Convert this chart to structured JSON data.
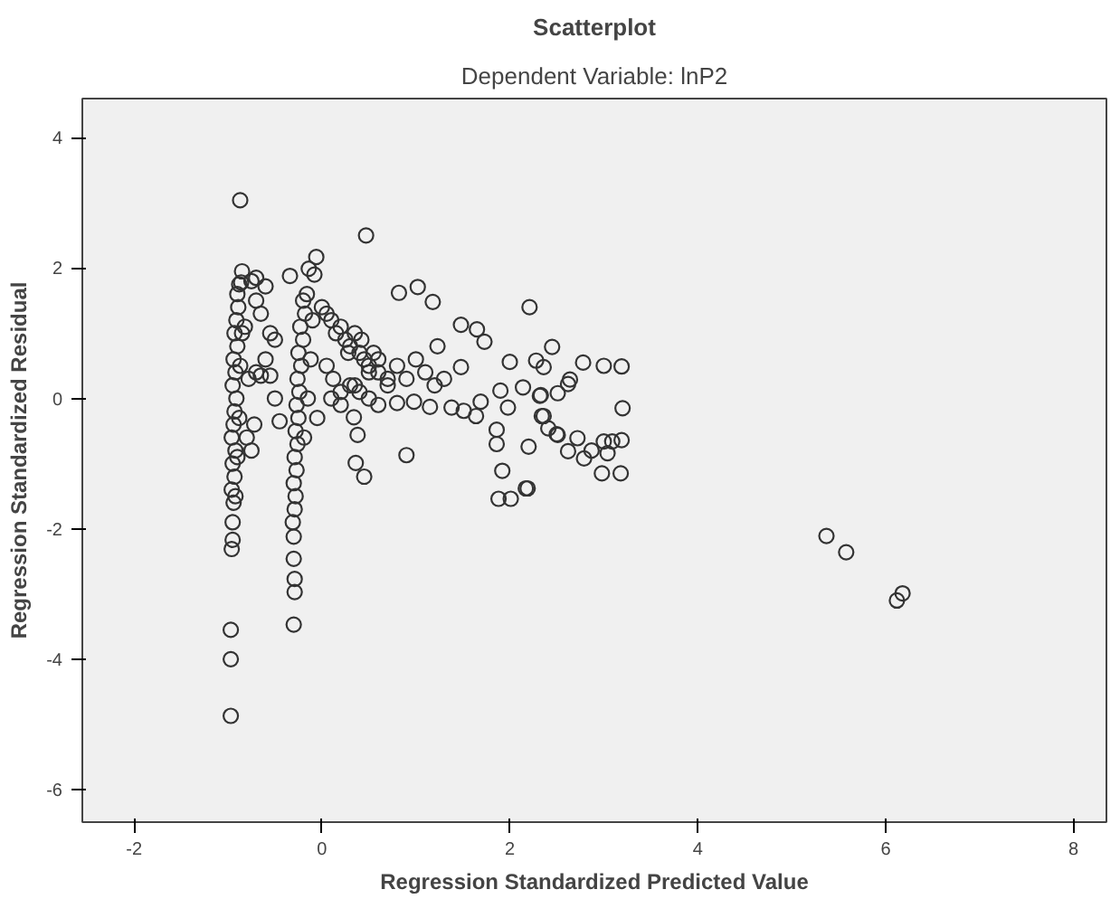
{
  "chart_data": {
    "type": "scatter",
    "title": "Scatterplot",
    "subtitle": "Dependent Variable: lnP2",
    "xlabel": "Regression Standardized Predicted Value",
    "ylabel": "Regression Standardized Residual",
    "marker": "circle",
    "grid": false,
    "xlim": [
      -2.55,
      8.35
    ],
    "ylim": [
      -6.5,
      4.6
    ],
    "xticks": [
      -2,
      0,
      2,
      4,
      6,
      8
    ],
    "yticks": [
      -6,
      -4,
      -2,
      0,
      2,
      4
    ],
    "series": [
      {
        "color": "#333333",
        "x": [
          -0.87,
          -0.97,
          -0.97,
          -0.97,
          -0.96,
          -0.95,
          -0.95,
          -0.94,
          -0.96,
          -0.93,
          -0.95,
          -0.92,
          -0.96,
          -0.94,
          -0.93,
          -0.91,
          -0.95,
          -0.92,
          -0.94,
          -0.9,
          -0.93,
          -0.91,
          -0.89,
          -0.92,
          -0.9,
          -0.88,
          -0.87,
          -0.85,
          -0.9,
          -0.86,
          -0.75,
          -0.7,
          -0.6,
          -0.65,
          -0.7,
          -0.55,
          -0.5,
          -0.6,
          -0.65,
          -0.55,
          -0.5,
          -0.45,
          -0.75,
          -0.72,
          -0.7,
          -0.78,
          -0.8,
          -0.82,
          -0.85,
          -0.88,
          -0.3,
          -0.29,
          -0.29,
          -0.3,
          -0.3,
          -0.31,
          -0.29,
          -0.28,
          -0.3,
          -0.27,
          -0.29,
          -0.26,
          -0.28,
          -0.25,
          -0.27,
          -0.24,
          -0.26,
          -0.22,
          -0.25,
          -0.2,
          -0.23,
          -0.18,
          -0.2,
          -0.16,
          -0.19,
          -0.15,
          -0.12,
          -0.1,
          -0.08,
          -0.06,
          -0.34,
          -0.14,
          0.47,
          -0.05,
          0.0,
          0.05,
          0.1,
          0.15,
          0.2,
          0.25,
          0.3,
          0.35,
          0.4,
          0.45,
          0.5,
          0.55,
          0.6,
          0.7,
          0.05,
          0.12,
          0.2,
          0.28,
          0.35,
          0.42,
          0.5,
          0.6,
          0.7,
          0.8,
          0.9,
          1.0,
          1.1,
          1.2,
          1.3,
          0.1,
          0.2,
          0.3,
          0.4,
          0.5,
          0.6,
          0.38,
          0.36,
          0.45,
          0.34,
          0.9,
          0.8,
          0.98,
          1.15,
          1.38,
          1.51,
          1.64,
          1.69,
          1.48,
          0.82,
          1.02,
          1.18,
          1.48,
          1.65,
          1.73,
          1.23,
          2.21,
          2.0,
          1.9,
          1.98,
          2.14,
          1.86,
          1.86,
          1.92,
          1.88,
          2.01,
          2.17,
          2.2,
          2.45,
          2.28,
          2.36,
          2.33,
          2.34,
          2.41,
          2.51,
          2.78,
          3.0,
          3.19,
          3.2,
          2.64,
          2.62,
          2.51,
          2.32,
          2.36,
          2.5,
          2.62,
          2.72,
          2.79,
          2.87,
          3.0,
          3.09,
          3.19,
          3.04,
          2.98,
          3.18,
          2.19,
          5.37,
          5.58,
          6.12,
          6.18
        ],
        "values": [
          3.04,
          -3.55,
          -4.0,
          -4.87,
          -2.31,
          -2.17,
          -1.9,
          -1.6,
          -1.4,
          -1.2,
          -1.0,
          -0.8,
          -0.6,
          -0.4,
          -0.2,
          0.0,
          0.2,
          0.4,
          0.6,
          0.8,
          1.0,
          1.2,
          1.4,
          -1.5,
          -0.9,
          -0.3,
          0.5,
          1.0,
          1.6,
          1.78,
          1.8,
          1.85,
          1.72,
          1.3,
          1.5,
          1.0,
          0.9,
          0.6,
          0.35,
          0.35,
          0.0,
          -0.35,
          -0.8,
          -0.4,
          0.4,
          0.3,
          -0.6,
          1.1,
          1.95,
          1.75,
          -3.47,
          -2.97,
          -2.77,
          -2.46,
          -2.12,
          -1.9,
          -1.7,
          -1.5,
          -1.3,
          -1.1,
          -0.9,
          -0.7,
          -0.5,
          -0.3,
          -0.1,
          0.1,
          0.3,
          0.5,
          0.7,
          0.9,
          1.1,
          1.3,
          1.5,
          1.6,
          -0.6,
          0.0,
          0.6,
          1.2,
          1.9,
          2.17,
          1.88,
          1.99,
          2.5,
          -0.3,
          1.4,
          1.3,
          1.2,
          1.0,
          1.1,
          0.9,
          0.8,
          1.0,
          0.7,
          0.6,
          0.5,
          0.7,
          0.4,
          0.3,
          0.5,
          0.3,
          0.1,
          0.7,
          0.2,
          0.9,
          0.4,
          0.6,
          0.2,
          0.5,
          0.3,
          0.6,
          0.4,
          0.2,
          0.3,
          0.0,
          -0.1,
          0.2,
          0.1,
          0.0,
          -0.1,
          -0.56,
          -0.99,
          -1.2,
          -0.29,
          -0.87,
          -0.07,
          -0.05,
          -0.13,
          -0.14,
          -0.19,
          -0.27,
          -0.05,
          0.48,
          1.62,
          1.71,
          1.48,
          1.13,
          1.06,
          0.87,
          0.8,
          1.4,
          0.56,
          0.12,
          -0.14,
          0.17,
          -0.48,
          -0.7,
          -1.11,
          -1.54,
          -1.54,
          -1.38,
          -0.74,
          0.79,
          0.58,
          0.48,
          0.05,
          -0.27,
          -0.46,
          -0.56,
          0.55,
          0.5,
          0.49,
          -0.15,
          0.29,
          0.22,
          0.08,
          0.04,
          -0.27,
          -0.55,
          -0.81,
          -0.61,
          -0.92,
          -0.8,
          -0.66,
          -0.66,
          -0.64,
          -0.84,
          -1.15,
          -1.15,
          -1.38,
          -2.11,
          -2.36,
          -3.1,
          -2.99
        ]
      }
    ]
  }
}
